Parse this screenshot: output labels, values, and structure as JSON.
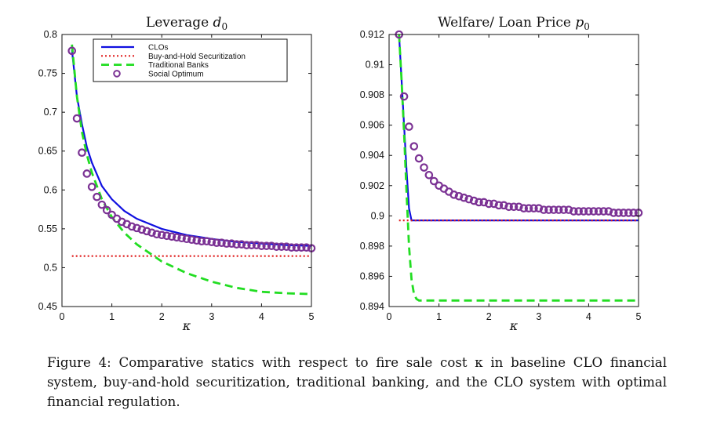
{
  "chart_data": [
    {
      "type": "line",
      "title": "Leverage d",
      "title_subscript": "0",
      "xlabel": "κ",
      "ylabel": "",
      "xlim": [
        0,
        5
      ],
      "ylim": [
        0.45,
        0.8
      ],
      "xticks": [
        0,
        1,
        2,
        3,
        4,
        5
      ],
      "yticks": [
        0.45,
        0.5,
        0.55,
        0.6,
        0.65,
        0.7,
        0.75,
        0.8
      ],
      "ytick_labels": [
        "0.45",
        "0.5",
        "0.55",
        "0.6",
        "0.65",
        "0.7",
        "0.75",
        "0.8"
      ],
      "legend": {
        "position": "top-right",
        "entries": [
          "CLOs",
          "Buy-and-Hold Securitization",
          "Traditional Banks",
          "Social Optimum"
        ]
      },
      "series": [
        {
          "name": "CLOs",
          "color": "#1010e0",
          "x": [
            0.2,
            0.3,
            0.4,
            0.5,
            0.6,
            0.8,
            1.0,
            1.25,
            1.5,
            2.0,
            2.5,
            3.0,
            3.5,
            4.0,
            4.5,
            5.0
          ],
          "y": [
            0.78,
            0.72,
            0.685,
            0.655,
            0.635,
            0.605,
            0.588,
            0.573,
            0.563,
            0.55,
            0.542,
            0.537,
            0.533,
            0.531,
            0.529,
            0.528
          ]
        },
        {
          "name": "Buy-and-Hold Securitization",
          "color": "#e02020",
          "x": [
            0.2,
            5.0
          ],
          "y": [
            0.515,
            0.515
          ]
        },
        {
          "name": "Traditional Banks",
          "color": "#22dd22",
          "x": [
            0.2,
            0.3,
            0.4,
            0.5,
            0.6,
            0.8,
            1.0,
            1.25,
            1.5,
            2.0,
            2.5,
            3.0,
            3.5,
            4.0,
            4.5,
            5.0
          ],
          "y": [
            0.787,
            0.72,
            0.675,
            0.645,
            0.622,
            0.588,
            0.565,
            0.545,
            0.53,
            0.508,
            0.493,
            0.482,
            0.474,
            0.469,
            0.467,
            0.466
          ]
        },
        {
          "name": "Social Optimum",
          "color": "#7b3294",
          "x": [
            0.2,
            0.3,
            0.4,
            0.5,
            0.6,
            0.7,
            0.8,
            0.9,
            1.0,
            1.1,
            1.2,
            1.3,
            1.4,
            1.5,
            1.6,
            1.7,
            1.8,
            1.9,
            2.0,
            2.1,
            2.2,
            2.3,
            2.4,
            2.5,
            2.6,
            2.7,
            2.8,
            2.9,
            3.0,
            3.1,
            3.2,
            3.3,
            3.4,
            3.5,
            3.6,
            3.7,
            3.8,
            3.9,
            4.0,
            4.1,
            4.2,
            4.3,
            4.4,
            4.5,
            4.6,
            4.7,
            4.8,
            4.9,
            5.0
          ],
          "y": [
            0.779,
            0.692,
            0.648,
            0.621,
            0.604,
            0.591,
            0.581,
            0.574,
            0.568,
            0.563,
            0.559,
            0.556,
            0.553,
            0.551,
            0.549,
            0.547,
            0.545,
            0.543,
            0.542,
            0.541,
            0.54,
            0.539,
            0.538,
            0.537,
            0.536,
            0.535,
            0.534,
            0.534,
            0.533,
            0.532,
            0.532,
            0.531,
            0.531,
            0.53,
            0.53,
            0.529,
            0.529,
            0.529,
            0.528,
            0.528,
            0.528,
            0.527,
            0.527,
            0.527,
            0.526,
            0.526,
            0.526,
            0.526,
            0.525
          ]
        }
      ]
    },
    {
      "type": "line",
      "title": "Welfare/ Loan Price p",
      "title_subscript": "0",
      "xlabel": "κ",
      "ylabel": "",
      "xlim": [
        0,
        5
      ],
      "ylim": [
        0.894,
        0.912
      ],
      "xticks": [
        0,
        1,
        2,
        3,
        4,
        5
      ],
      "yticks": [
        0.894,
        0.896,
        0.898,
        0.9,
        0.902,
        0.904,
        0.906,
        0.908,
        0.91,
        0.912
      ],
      "ytick_labels": [
        "0.894",
        "0.896",
        "0.898",
        "0.9",
        "0.902",
        "0.904",
        "0.906",
        "0.908",
        "0.91",
        "0.912"
      ],
      "series": [
        {
          "name": "CLOs",
          "color": "#1010e0",
          "x": [
            0.2,
            0.25,
            0.3,
            0.35,
            0.4,
            0.45,
            5.0
          ],
          "y": [
            0.912,
            0.909,
            0.906,
            0.903,
            0.9005,
            0.8997,
            0.8997
          ]
        },
        {
          "name": "Buy-and-Hold Securitization",
          "color": "#e02020",
          "x": [
            0.2,
            5.0
          ],
          "y": [
            0.8997,
            0.8997
          ]
        },
        {
          "name": "Traditional Banks",
          "color": "#22dd22",
          "x": [
            0.2,
            0.25,
            0.3,
            0.35,
            0.4,
            0.45,
            0.5,
            0.55,
            0.6,
            5.0
          ],
          "y": [
            0.912,
            0.909,
            0.9055,
            0.9015,
            0.898,
            0.8958,
            0.8948,
            0.8945,
            0.8944,
            0.8944
          ]
        },
        {
          "name": "Social Optimum",
          "color": "#7b3294",
          "x": [
            0.2,
            0.3,
            0.4,
            0.5,
            0.6,
            0.7,
            0.8,
            0.9,
            1.0,
            1.1,
            1.2,
            1.3,
            1.4,
            1.5,
            1.6,
            1.7,
            1.8,
            1.9,
            2.0,
            2.1,
            2.2,
            2.3,
            2.4,
            2.5,
            2.6,
            2.7,
            2.8,
            2.9,
            3.0,
            3.1,
            3.2,
            3.3,
            3.4,
            3.5,
            3.6,
            3.7,
            3.8,
            3.9,
            4.0,
            4.1,
            4.2,
            4.3,
            4.4,
            4.5,
            4.6,
            4.7,
            4.8,
            4.9,
            5.0
          ],
          "y": [
            0.912,
            0.9079,
            0.9059,
            0.9046,
            0.9038,
            0.9032,
            0.9027,
            0.9023,
            0.902,
            0.9018,
            0.9016,
            0.9014,
            0.9013,
            0.9012,
            0.9011,
            0.901,
            0.9009,
            0.9009,
            0.9008,
            0.9008,
            0.9007,
            0.9007,
            0.9006,
            0.9006,
            0.9006,
            0.9005,
            0.9005,
            0.9005,
            0.9005,
            0.9004,
            0.9004,
            0.9004,
            0.9004,
            0.9004,
            0.9004,
            0.9003,
            0.9003,
            0.9003,
            0.9003,
            0.9003,
            0.9003,
            0.9003,
            0.9003,
            0.9002,
            0.9002,
            0.9002,
            0.9002,
            0.9002,
            0.9002
          ]
        }
      ]
    }
  ],
  "caption": "Figure 4: Comparative statics with respect to fire sale cost κ in baseline CLO financial system, buy-and-hold securitization, traditional banking, and the CLO system with optimal financial regulation."
}
